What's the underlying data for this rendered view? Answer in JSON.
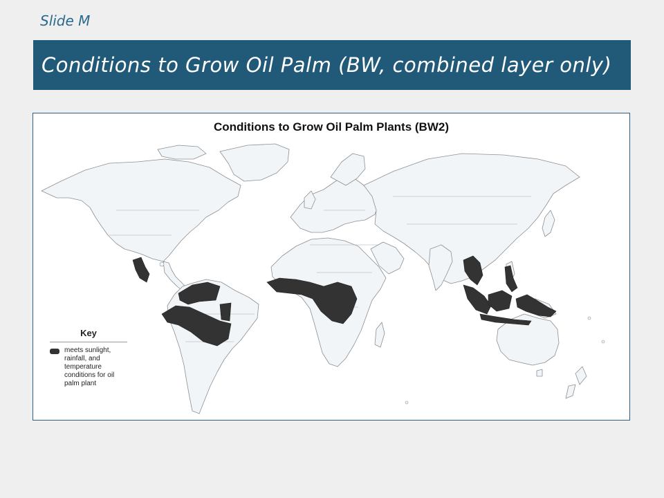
{
  "slide": {
    "label": "Slide M"
  },
  "header": {
    "title": "Conditions to Grow Oil Palm (BW, combined layer only)"
  },
  "map": {
    "title": "Conditions to Grow Oil Palm Plants (BW2)",
    "land_color": "#f2f5f7",
    "border_color": "#8a8f94",
    "highlight_color": "#333333",
    "key": {
      "title": "Key",
      "items": [
        {
          "label": "meets sunlight, rainfall, and temperature conditions for oil palm plant",
          "color": "#333333"
        }
      ]
    }
  }
}
